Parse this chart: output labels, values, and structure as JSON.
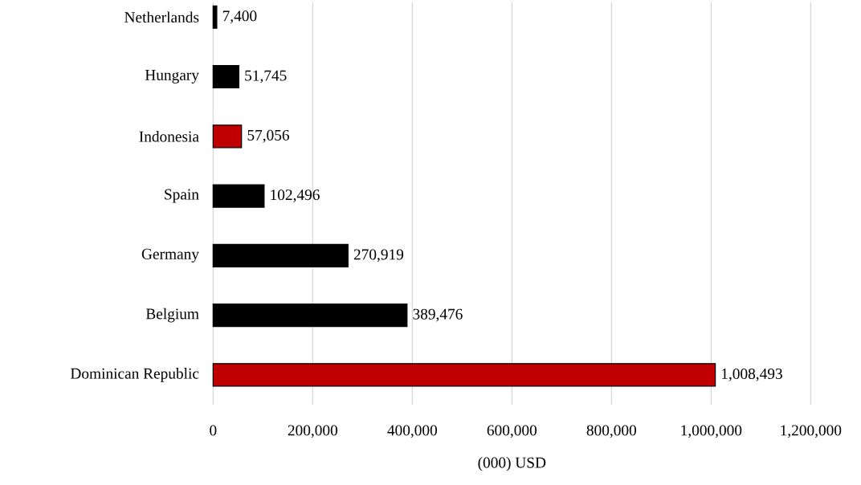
{
  "chart_data": {
    "type": "bar",
    "orientation": "horizontal",
    "xlabel": "(000) USD",
    "categories": [
      "Netherlands",
      "Hungary",
      "Indonesia",
      "Spain",
      "Germany",
      "Belgium",
      "Dominican Republic"
    ],
    "values": [
      7400,
      51745,
      57056,
      102496,
      270919,
      389476,
      1008493
    ],
    "value_labels": [
      "7,400",
      "51,745",
      "57,056",
      "102,496",
      "270,919",
      "389,476",
      "1,008,493"
    ],
    "colors": [
      "#000000",
      "#000000",
      "#c00000",
      "#000000",
      "#000000",
      "#000000",
      "#c00000"
    ],
    "xlim": [
      0,
      1200000
    ],
    "xticks": [
      0,
      {
        "value": 200000,
        "label": "200,000"
      },
      {
        "value": 400000,
        "label": "400,000"
      },
      {
        "value": 600000,
        "label": "600,000"
      },
      {
        "value": 800000,
        "label": "800,000"
      },
      {
        "value": 1000000,
        "label": "1,000,000"
      },
      {
        "value": 1200000,
        "label": "1,200,000"
      }
    ],
    "grid": "x"
  }
}
